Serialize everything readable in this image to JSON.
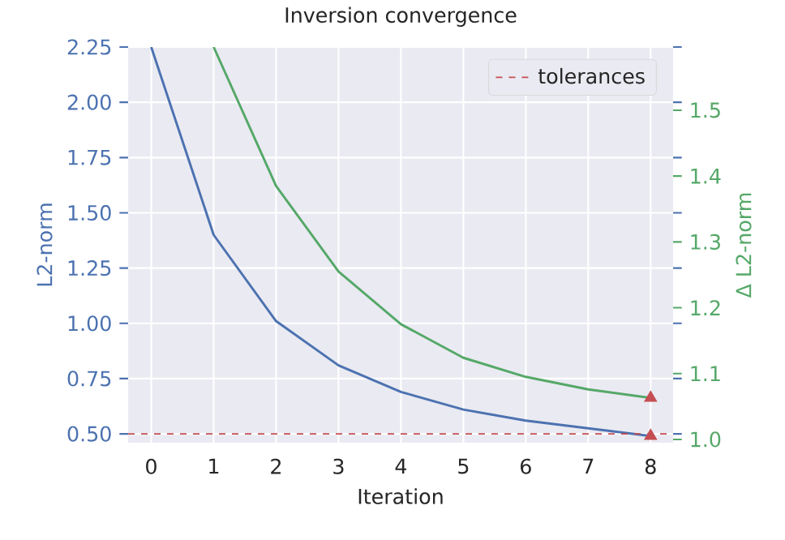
{
  "chart_data": {
    "type": "line",
    "title": "Inversion convergence",
    "xlabel": "Iteration",
    "ylabel": "L2-norm",
    "y2label": "Δ L2-norm",
    "x": [
      0,
      1,
      2,
      3,
      4,
      5,
      6,
      7,
      8
    ],
    "series": [
      {
        "color": "#4c72b0",
        "values": [
          2.25,
          1.4,
          1.01,
          0.81,
          0.69,
          0.61,
          0.56,
          0.525,
          0.49
        ]
      },
      {
        "color": "#55a868",
        "axis": "y2",
        "values": [
          null,
          1.596,
          1.385,
          1.255,
          1.175,
          1.124,
          1.095,
          1.076,
          1.063
        ]
      },
      {
        "type": "scatter",
        "marker": "triangle",
        "color": "#c44e52",
        "x": [
          8
        ],
        "values": [
          0.49
        ]
      },
      {
        "type": "scatter",
        "marker": "triangle",
        "color": "#c44e52",
        "axis": "y2",
        "x": [
          8
        ],
        "values": [
          1.063
        ]
      }
    ],
    "xlim": [
      -0.37,
      8.36
    ],
    "ylim": [
      0.46,
      2.25
    ],
    "y2lim": [
      0.995,
      1.596
    ],
    "xticks": [
      0,
      1,
      2,
      3,
      4,
      5,
      6,
      7,
      8
    ],
    "yticks": [
      {
        "value": 0.5,
        "label": "0.50"
      },
      {
        "value": 0.75,
        "label": "0.75"
      },
      {
        "value": 1.0,
        "label": "1.00"
      },
      {
        "value": 1.25,
        "label": "1.25"
      },
      {
        "value": 1.5,
        "label": "1.50"
      },
      {
        "value": 1.75,
        "label": "1.75"
      },
      {
        "value": 2.0,
        "label": "2.00"
      },
      {
        "value": 2.25,
        "label": "2.25"
      }
    ],
    "y2ticks": [
      {
        "value": 1.0,
        "label": "1.0"
      },
      {
        "value": 1.1,
        "label": "1.1"
      },
      {
        "value": 1.2,
        "label": "1.2"
      },
      {
        "value": 1.3,
        "label": "1.3"
      },
      {
        "value": 1.4,
        "label": "1.4"
      },
      {
        "value": 1.5,
        "label": "1.5"
      }
    ],
    "ref_lines": [
      {
        "axis": "y",
        "value": 0.5,
        "label": "tolerances",
        "color": "#c44e52",
        "line_style": "dashed"
      }
    ],
    "grid": true,
    "legend": "top right"
  }
}
